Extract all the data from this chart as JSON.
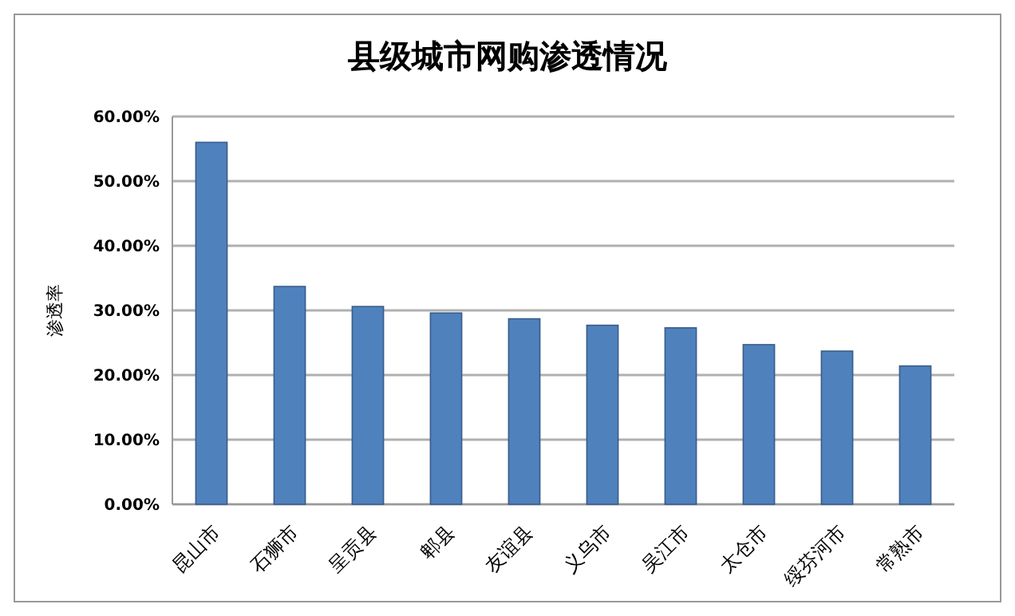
{
  "chart_data": {
    "type": "bar",
    "title": "县级城市网购渗透情况",
    "ylabel": "渗透率",
    "categories": [
      "昆山市",
      "石狮市",
      "呈贡县",
      "郫县",
      "友谊县",
      "义乌市",
      "吴江市",
      "太仓市",
      "绥芬河市",
      "常熟市"
    ],
    "values": [
      0.56,
      0.337,
      0.306,
      0.296,
      0.287,
      0.277,
      0.273,
      0.247,
      0.237,
      0.214
    ],
    "color": "#4f81bd",
    "ylim": [
      0,
      0.6
    ],
    "yticks": [
      {
        "value": 0,
        "label": "0.00%"
      },
      {
        "value": 0.1,
        "label": "10.00%"
      },
      {
        "value": 0.2,
        "label": "20.00%"
      },
      {
        "value": 0.3,
        "label": "30.00%"
      },
      {
        "value": 0.4,
        "label": "40.00%"
      },
      {
        "value": 0.5,
        "label": "50.00%"
      },
      {
        "value": 0.6,
        "label": "60.00%"
      }
    ],
    "grid": "y"
  }
}
